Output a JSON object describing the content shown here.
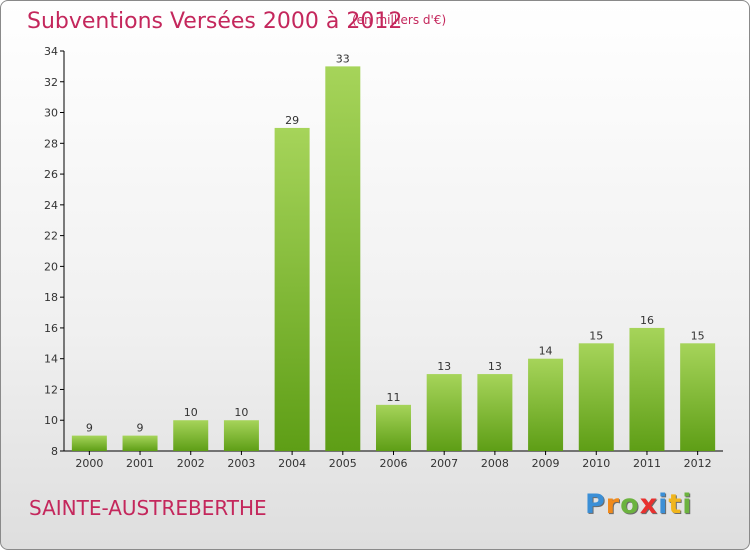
{
  "title": "Subventions Versées 2000 à 2012",
  "unit_note": "(en milliers d'€)",
  "commune": "SAINTE-AUSTREBERTHE",
  "logo": {
    "letters": [
      "P",
      "r",
      "o",
      "x",
      "i",
      "t",
      "i"
    ],
    "colors": [
      "#3b8fd6",
      "#f08a1c",
      "#6cb33f",
      "#e8312f",
      "#3b8fd6",
      "#f0b51c",
      "#6cb33f"
    ]
  },
  "colors": {
    "title": "#c4275c",
    "bar_top": "#a6d45a",
    "bar_bottom": "#5e9e16",
    "axis": "#000000",
    "grid": "#d8d8d8"
  },
  "chart_data": {
    "type": "bar",
    "title": "Subventions Versées 2000 à 2012",
    "xlabel": "",
    "ylabel": "",
    "categories": [
      "2000",
      "2001",
      "2002",
      "2003",
      "2004",
      "2005",
      "2006",
      "2007",
      "2008",
      "2009",
      "2010",
      "2011",
      "2012"
    ],
    "values": [
      9,
      9,
      10,
      10,
      29,
      33,
      11,
      13,
      13,
      14,
      15,
      16,
      15
    ],
    "ylim": [
      8,
      34
    ],
    "yticks": [
      8,
      10,
      12,
      14,
      16,
      18,
      20,
      22,
      24,
      26,
      28,
      30,
      32,
      34
    ],
    "grid": false,
    "data_labels": true
  }
}
